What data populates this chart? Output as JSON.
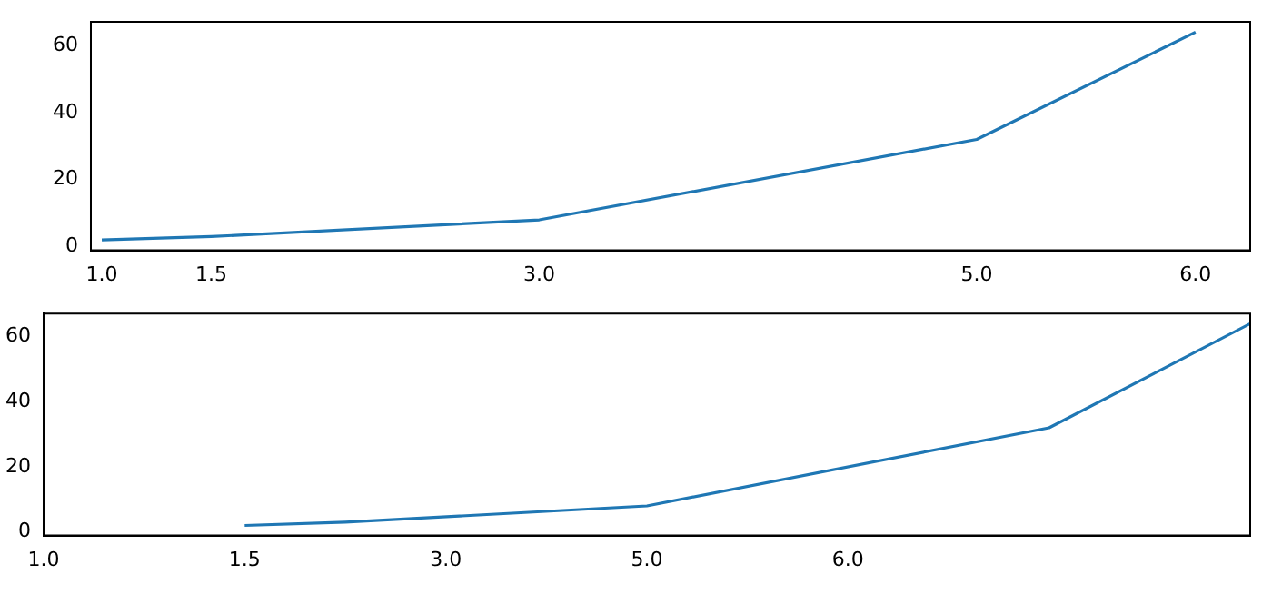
{
  "chart_data": [
    {
      "type": "line",
      "x": [
        1,
        1.5,
        3,
        5,
        6
      ],
      "series": [
        {
          "color": "#1f77b4",
          "values": [
            2,
            3,
            8,
            32,
            64
          ]
        }
      ],
      "xlim": [
        0.95,
        6.25
      ],
      "xticks": [
        {
          "value": 1,
          "label": "1.0"
        },
        {
          "value": 1.5,
          "label": "1.5"
        },
        {
          "value": 3,
          "label": "3.0"
        },
        {
          "value": 5,
          "label": "5.0"
        },
        {
          "value": 6,
          "label": "6.0"
        }
      ],
      "ylim": [
        -1.1,
        67.1
      ],
      "yticks": [
        0,
        20,
        40,
        60
      ],
      "grid": false,
      "legend": false,
      "marker": "none",
      "line_style": "solid"
    },
    {
      "type": "line",
      "categories": [
        "1.0",
        null,
        "1.5",
        null,
        "3.0",
        null,
        "5.0",
        null,
        "6.0",
        null,
        null,
        null,
        null
      ],
      "series": [
        {
          "color": "#1f77b4",
          "values": [
            null,
            null,
            2,
            3,
            null,
            null,
            8,
            null,
            null,
            null,
            32,
            null,
            64
          ]
        }
      ],
      "ylim": [
        -1.1,
        67.1
      ],
      "yticks": [
        0,
        20,
        40,
        60
      ],
      "grid": false,
      "legend": false,
      "marker": "none",
      "line_style": "solid"
    }
  ]
}
